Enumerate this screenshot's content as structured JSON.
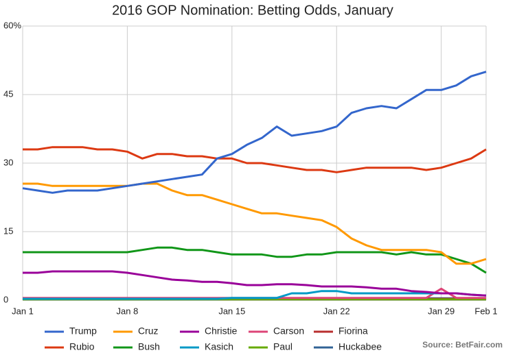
{
  "chart_data": {
    "type": "line",
    "title": "2016 GOP Nomination: Betting Odds, January",
    "source": "Source: BetFair.com",
    "x": [
      1,
      2,
      3,
      4,
      5,
      6,
      7,
      8,
      9,
      10,
      11,
      12,
      13,
      14,
      15,
      16,
      17,
      18,
      19,
      20,
      21,
      22,
      23,
      24,
      25,
      26,
      27,
      28,
      29,
      30,
      31,
      32
    ],
    "xlim": [
      1,
      32
    ],
    "xticks": [
      {
        "value": 1,
        "label": "Jan 1"
      },
      {
        "value": 8,
        "label": "Jan 8"
      },
      {
        "value": 15,
        "label": "Jan 15"
      },
      {
        "value": 22,
        "label": "Jan 22"
      },
      {
        "value": 29,
        "label": "Jan 29"
      },
      {
        "value": 32,
        "label": "Feb 1"
      }
    ],
    "ylim": [
      0,
      60
    ],
    "yticks": [
      0,
      15,
      30,
      45,
      {
        "value": 60,
        "label": "60%"
      }
    ],
    "grid": true,
    "legend": "bottom",
    "series": [
      {
        "name": "Trump",
        "color": "#3366cc",
        "values": [
          24.5,
          24,
          23.5,
          24,
          24,
          24,
          24.5,
          25,
          25.5,
          26,
          26.5,
          27,
          27.5,
          31,
          32,
          34,
          35.5,
          38,
          36,
          36.5,
          37,
          38,
          41,
          42,
          42.5,
          42,
          44,
          46,
          46,
          47,
          49,
          50
        ]
      },
      {
        "name": "Rubio",
        "color": "#dc3912",
        "values": [
          33,
          33,
          33.5,
          33.5,
          33.5,
          33,
          33,
          32.5,
          31,
          32,
          32,
          31.5,
          31.5,
          31,
          31,
          30,
          30,
          29.5,
          29,
          28.5,
          28.5,
          28,
          28.5,
          29,
          29,
          29,
          29,
          28.5,
          29,
          30,
          31,
          33
        ]
      },
      {
        "name": "Cruz",
        "color": "#ff9900",
        "values": [
          25.5,
          25.5,
          25,
          25,
          25,
          25,
          25,
          25,
          25.5,
          25.5,
          24,
          23,
          23,
          22,
          21,
          20,
          19,
          19,
          18.5,
          18,
          17.5,
          16,
          13.5,
          12,
          11,
          11,
          11,
          11,
          10.5,
          8,
          8,
          9
        ]
      },
      {
        "name": "Bush",
        "color": "#109618",
        "values": [
          10.5,
          10.5,
          10.5,
          10.5,
          10.5,
          10.5,
          10.5,
          10.5,
          11,
          11.5,
          11.5,
          11,
          11,
          10.5,
          10,
          10,
          10,
          9.5,
          9.5,
          10,
          10,
          10.5,
          10.5,
          10.5,
          10.5,
          10,
          10.5,
          10,
          10,
          9,
          8,
          6
        ]
      },
      {
        "name": "Christie",
        "color": "#990099",
        "values": [
          6,
          6,
          6.3,
          6.3,
          6.3,
          6.3,
          6.3,
          6,
          5.5,
          5,
          4.5,
          4.3,
          4,
          4,
          3.7,
          3.3,
          3.3,
          3.5,
          3.5,
          3.3,
          3,
          3,
          3,
          2.8,
          2.5,
          2.5,
          2,
          1.8,
          1.5,
          1.5,
          1.2,
          1
        ]
      },
      {
        "name": "Kasich",
        "color": "#0099c6",
        "values": [
          0.3,
          0.3,
          0.3,
          0.3,
          0.3,
          0.3,
          0.3,
          0.3,
          0.3,
          0.3,
          0.3,
          0.3,
          0.3,
          0.3,
          0.5,
          0.5,
          0.5,
          0.5,
          1.5,
          1.5,
          2,
          2,
          1.5,
          1.5,
          1.5,
          1.5,
          1.5,
          1.5,
          1.5,
          1.5,
          1.2,
          1
        ]
      },
      {
        "name": "Carson",
        "color": "#dd4477",
        "values": [
          0.5,
          0.5,
          0.5,
          0.5,
          0.5,
          0.5,
          0.5,
          0.5,
          0.5,
          0.5,
          0.5,
          0.5,
          0.5,
          0.5,
          0.5,
          0.5,
          0.5,
          0.5,
          0.5,
          0.5,
          0.5,
          0.5,
          0.5,
          0.5,
          0.5,
          0.5,
          0.5,
          0.5,
          2.5,
          0.5,
          0.5,
          0.5
        ]
      },
      {
        "name": "Paul",
        "color": "#66aa00",
        "values": [
          0.2,
          0.2,
          0.2,
          0.2,
          0.2,
          0.2,
          0.2,
          0.2,
          0.2,
          0.2,
          0.2,
          0.2,
          0.2,
          0.2,
          0.2,
          0.2,
          0.2,
          0.2,
          0.2,
          0.2,
          0.2,
          0.2,
          0.2,
          0.2,
          0.2,
          0.2,
          0.2,
          0.2,
          0.2,
          0.2,
          0.2,
          0.2
        ]
      },
      {
        "name": "Fiorina",
        "color": "#b82e2e",
        "values": [
          0.3,
          0.3,
          0.3,
          0.3,
          0.3,
          0.3,
          0.3,
          0.3,
          0.3,
          0.3,
          0.3,
          0.3,
          0.3,
          0.3,
          0.3,
          0.3,
          0.3,
          0.3,
          0.3,
          0.3,
          0.3,
          0.3,
          0.3,
          0.3,
          0.3,
          0.3,
          0.3,
          0.3,
          0.3,
          0.3,
          0.3,
          0.3
        ]
      },
      {
        "name": "Huckabee",
        "color": "#316395",
        "values": [
          0.4,
          0.4,
          0.4,
          0.4,
          0.4,
          0.4,
          0.4,
          0.4,
          0.4,
          0.4,
          0.4,
          0.4,
          0.4,
          0.4,
          0.4,
          0.4,
          0.4,
          0.4,
          0.4,
          0.4,
          0.4,
          0.4,
          0.4,
          0.4,
          0.4,
          0.4,
          0.4,
          0.4,
          0.4,
          0.4,
          0.4,
          0.4
        ]
      }
    ]
  }
}
